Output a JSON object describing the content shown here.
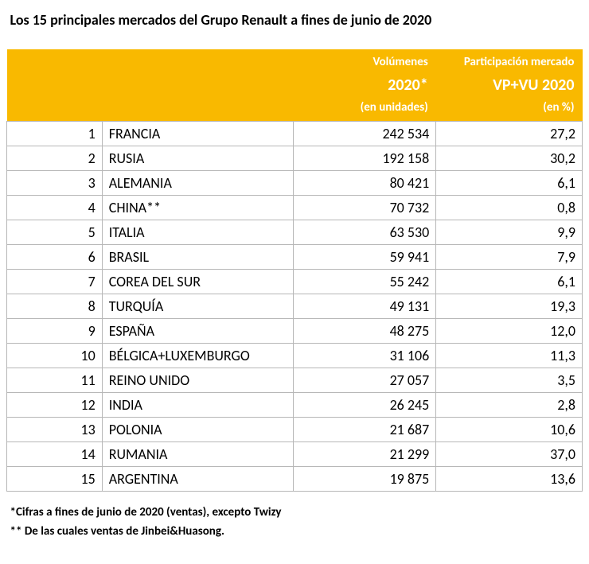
{
  "title": "Los 15 principales mercados del Grupo Renault a fines de junio de 2020",
  "header": {
    "volumes": {
      "sub": "Volúmenes",
      "main": "2020*",
      "unit": "(en unidades)"
    },
    "share": {
      "sub": "Participación mercado",
      "main": "VP+VU 2020",
      "unit": "(en %)"
    }
  },
  "colors": {
    "header_bg": "#f9b900",
    "header_text": "#ffffff",
    "border": "#b7b7b7",
    "background": "#ffffff",
    "text": "#000000"
  },
  "rows": [
    {
      "rank": "1",
      "country": "FRANCIA",
      "volume": "242 534",
      "share": "27,2"
    },
    {
      "rank": "2",
      "country": "RUSIA",
      "volume": "192 158",
      "share": "30,2"
    },
    {
      "rank": "3",
      "country": "ALEMANIA",
      "volume": "80 421",
      "share": "6,1"
    },
    {
      "rank": "4",
      "country": "CHINA**",
      "volume": "70 732",
      "share": "0,8"
    },
    {
      "rank": "5",
      "country": "ITALIA",
      "volume": "63 530",
      "share": "9,9"
    },
    {
      "rank": "6",
      "country": "BRASIL",
      "volume": "59 941",
      "share": "7,9"
    },
    {
      "rank": "7",
      "country": "COREA DEL SUR",
      "volume": "55 242",
      "share": "6,1"
    },
    {
      "rank": "8",
      "country": "TURQUÍA",
      "volume": "49 131",
      "share": "19,3"
    },
    {
      "rank": "9",
      "country": "ESPAÑA",
      "volume": "48 275",
      "share": "12,0"
    },
    {
      "rank": "10",
      "country": "BÉLGICA+LUXEMBURGO",
      "volume": "31 106",
      "share": "11,3"
    },
    {
      "rank": "11",
      "country": "REINO UNIDO",
      "volume": "27 057",
      "share": "3,5"
    },
    {
      "rank": "12",
      "country": "INDIA",
      "volume": "26 245",
      "share": "2,8"
    },
    {
      "rank": "13",
      "country": "POLONIA",
      "volume": "21 687",
      "share": "10,6"
    },
    {
      "rank": "14",
      "country": "RUMANIA",
      "volume": "21 299",
      "share": "37,0"
    },
    {
      "rank": "15",
      "country": "ARGENTINA",
      "volume": "19 875",
      "share": "13,6"
    }
  ],
  "footnotes": [
    "*Cifras a fines de junio de 2020 (ventas), excepto Twizy",
    "** De las cuales ventas de Jinbei&Huasong."
  ]
}
